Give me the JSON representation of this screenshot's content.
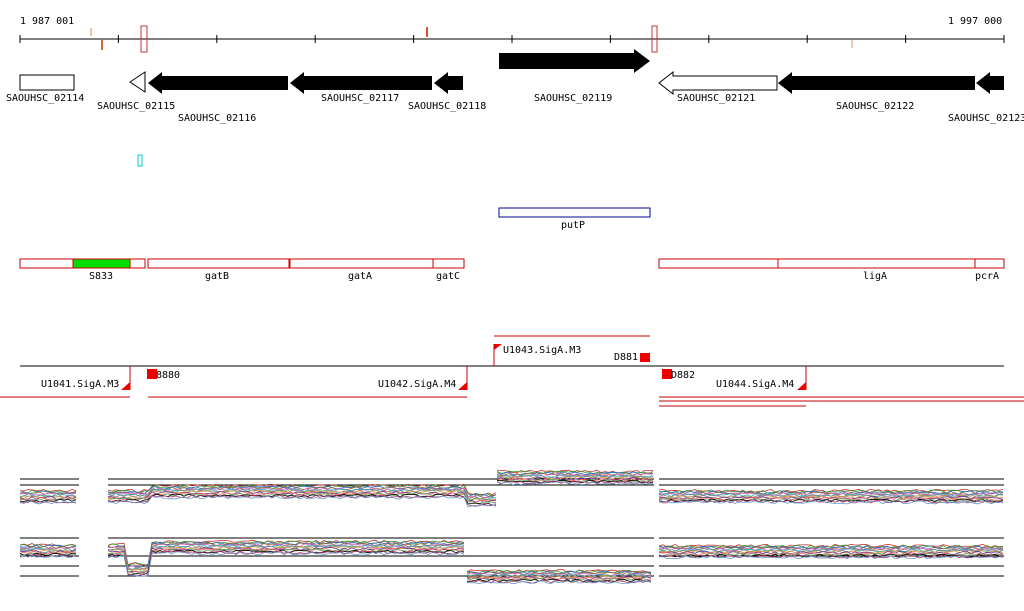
{
  "ruler": {
    "start_label": "1 987 001",
    "end_label": "1 997 000"
  },
  "genes": [
    {
      "name": "SAOUHSC_02114",
      "dir": "right",
      "filled": false
    },
    {
      "name": "SAOUHSC_02115",
      "dir": "left",
      "filled": false
    },
    {
      "name": "SAOUHSC_02116",
      "dir": "left",
      "filled": true
    },
    {
      "name": "SAOUHSC_02117",
      "dir": "left",
      "filled": true
    },
    {
      "name": "SAOUHSC_02118",
      "dir": "left",
      "filled": true
    },
    {
      "name": "SAOUHSC_02119",
      "dir": "right",
      "filled": true
    },
    {
      "name": "SAOUHSC_02121",
      "dir": "left",
      "filled": false
    },
    {
      "name": "SAOUHSC_02122",
      "dir": "left",
      "filled": true
    },
    {
      "name": "SAOUHSC_02123",
      "dir": "left",
      "filled": true
    }
  ],
  "annotation_feature": {
    "name": "putP"
  },
  "operons": [
    {
      "name": "S833",
      "highlighted": true
    },
    {
      "name": "gatB",
      "highlighted": false
    },
    {
      "name": "gatA",
      "highlighted": false
    },
    {
      "name": "gatC",
      "highlighted": false
    },
    {
      "name": "ligA",
      "highlighted": false
    },
    {
      "name": "pcrA",
      "highlighted": false
    }
  ],
  "transcription_units": [
    {
      "name": "U1041.SigA.M3"
    },
    {
      "name": "U1042.SigA.M4"
    },
    {
      "name": "U1043.SigA.M3"
    },
    {
      "name": "U1044.SigA.M4"
    }
  ],
  "small_features": [
    {
      "name": "D881"
    },
    {
      "name": "D882"
    },
    {
      "name": "8880"
    }
  ],
  "colors": {
    "gene_fill": "#000000",
    "operon_border": "#cc0000",
    "operon_highlight": "#00dd00",
    "promoter": "#ee0000",
    "annotation_border": "#000099",
    "misc_cyan": "#00cccc"
  }
}
